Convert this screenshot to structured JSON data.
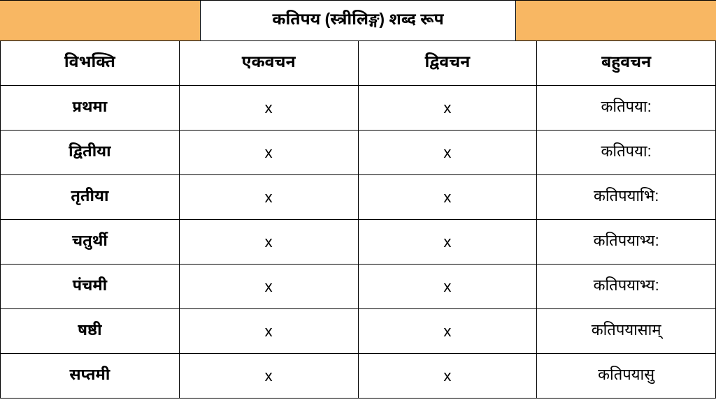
{
  "title": "कतिपय (स्त्रीलिङ्ग) शब्द रूप",
  "header_bg_color": "#f8b763",
  "columns": [
    "विभक्ति",
    "एकवचन",
    "द्विवचन",
    "बहुवचन"
  ],
  "rows": [
    {
      "label": "प्रथमा",
      "c1": "x",
      "c2": "x",
      "c3": "कतिपया:"
    },
    {
      "label": "द्वितीया",
      "c1": "x",
      "c2": "x",
      "c3": "कतिपया:"
    },
    {
      "label": "तृतीया",
      "c1": "x",
      "c2": "x",
      "c3": "कतिपयाभि:"
    },
    {
      "label": "चतुर्थी",
      "c1": "x",
      "c2": "x",
      "c3": "कतिपयाभ्य:"
    },
    {
      "label": "पंचमी",
      "c1": "x",
      "c2": "x",
      "c3": "कतिपयाभ्य:"
    },
    {
      "label": "षष्ठी",
      "c1": "x",
      "c2": "x",
      "c3": "कतिपयासाम्"
    },
    {
      "label": "सप्तमी",
      "c1": "x",
      "c2": "x",
      "c3": "कतिपयासु"
    }
  ]
}
